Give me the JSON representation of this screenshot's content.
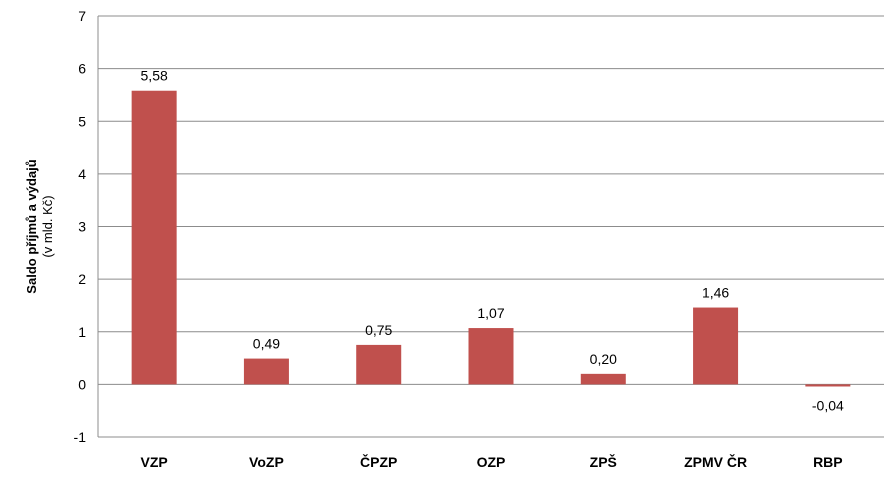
{
  "chart_data": {
    "type": "bar",
    "categories": [
      "VZP",
      "VoZP",
      "ČPZP",
      "OZP",
      "ZPŠ",
      "ZPMV ČR",
      "RBP"
    ],
    "values": [
      5.58,
      0.49,
      0.75,
      1.07,
      0.2,
      1.46,
      -0.04
    ],
    "value_labels": [
      "5,58",
      "0,49",
      "0,75",
      "1,07",
      "0,20",
      "1,46",
      "-0,04"
    ],
    "ylabel": "Saldo příjmů a výdajů",
    "ylabel_sub": "(v mld. Kč)",
    "ylim": [
      -1,
      7
    ],
    "yticks": [
      "-1",
      "0",
      "1",
      "2",
      "3",
      "4",
      "5",
      "6",
      "7"
    ],
    "grid": true,
    "bar_color": "#c0504d"
  }
}
